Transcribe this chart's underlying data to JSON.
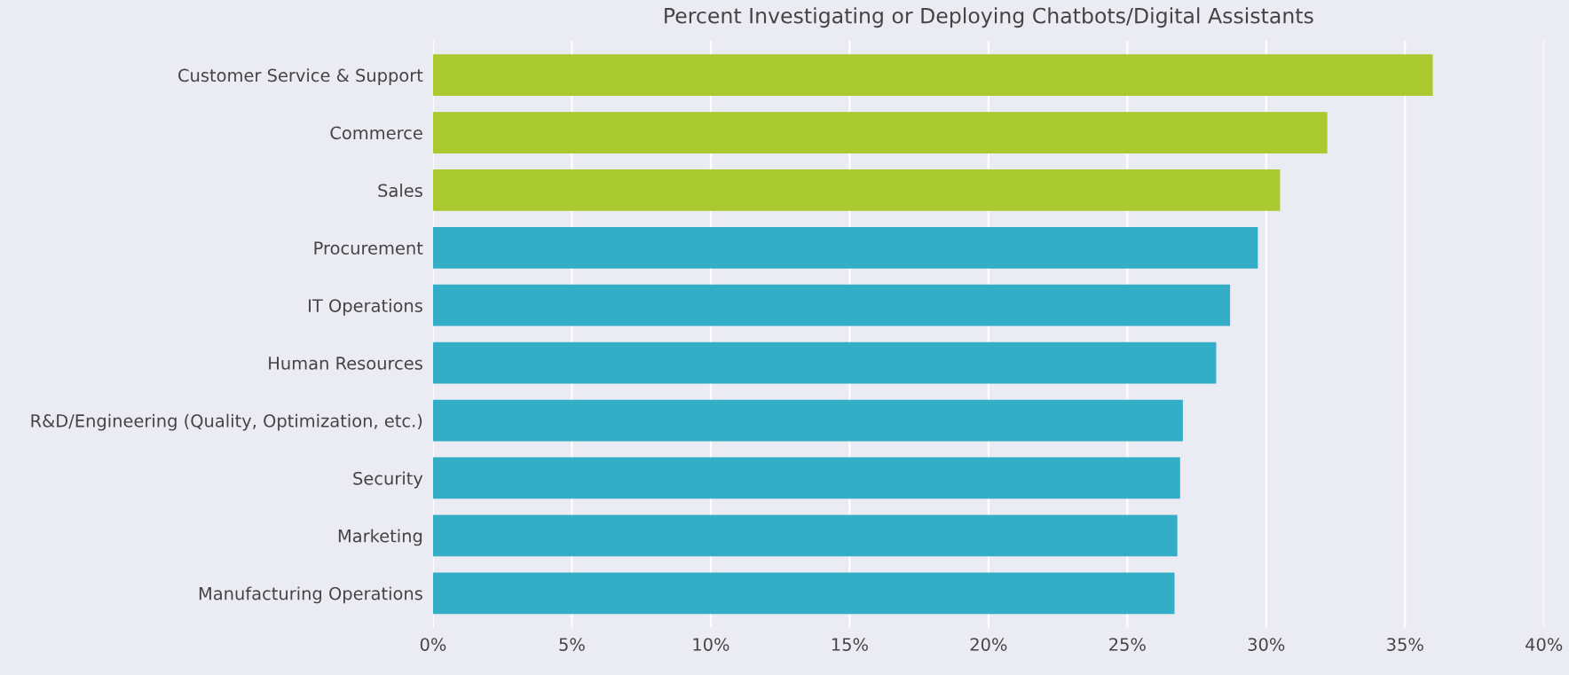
{
  "chart_data": {
    "type": "bar",
    "orientation": "horizontal",
    "title": "Percent Investigating or Deploying Chatbots/Digital Assistants",
    "categories": [
      "Customer Service & Support",
      "Commerce",
      "Sales",
      "Procurement",
      "IT Operations",
      "Human Resources",
      "R&D/Engineering (Quality, Optimization, etc.)",
      "Security",
      "Marketing",
      "Manufacturing Operations"
    ],
    "values": [
      36.0,
      32.2,
      30.5,
      29.7,
      28.7,
      28.2,
      27.0,
      26.9,
      26.8,
      26.7
    ],
    "colors": [
      "#a9c92e",
      "#a9c92e",
      "#a9c92e",
      "#34adc6",
      "#34adc6",
      "#34adc6",
      "#34adc6",
      "#34adc6",
      "#34adc6",
      "#34adc6"
    ],
    "xlim": [
      0,
      40
    ],
    "xticks": [
      {
        "value": 0,
        "label": "0%"
      },
      {
        "value": 5,
        "label": "5%"
      },
      {
        "value": 10,
        "label": "10%"
      },
      {
        "value": 15,
        "label": "15%"
      },
      {
        "value": 20,
        "label": "20%"
      },
      {
        "value": 25,
        "label": "25%"
      },
      {
        "value": 30,
        "label": "30%"
      },
      {
        "value": 35,
        "label": "35%"
      },
      {
        "value": 40,
        "label": "40%"
      }
    ],
    "grid": "x"
  }
}
